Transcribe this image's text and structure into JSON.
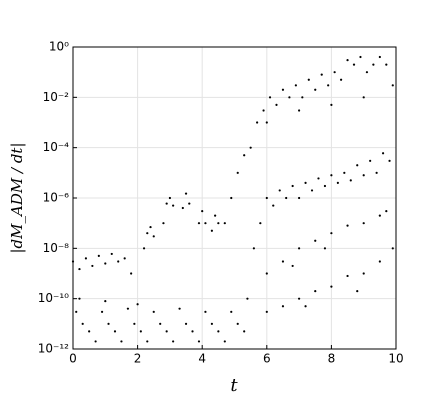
{
  "chart_data": {
    "type": "scatter",
    "x_label": "t",
    "y_label": "|dM_ADM / dt|",
    "xlim": [
      0,
      10
    ],
    "xticks": [
      0,
      2,
      4,
      6,
      8,
      10
    ],
    "ylim": [
      1e-12,
      1
    ],
    "log_y": true,
    "grid": true,
    "yticks": [
      {
        "value": 1e-12,
        "label": "10⁻¹²"
      },
      {
        "value": 1e-10,
        "label": "10⁻¹⁰"
      },
      {
        "value": 1e-08,
        "label": "10⁻⁸"
      },
      {
        "value": 1e-06,
        "label": "10⁻⁶"
      },
      {
        "value": 0.0001,
        "label": "10⁻⁴"
      },
      {
        "value": 0.01,
        "label": "10⁻²"
      },
      {
        "value": 1,
        "label": "10⁰"
      }
    ],
    "color": "#000000",
    "x": [
      0.1,
      0.3,
      0.5,
      0.7,
      0.9,
      1.1,
      1.3,
      1.5,
      1.7,
      1.9,
      2.1,
      2.3,
      2.5,
      2.7,
      2.9,
      3.1,
      3.3,
      3.5,
      3.7,
      3.9,
      4.1,
      4.3,
      4.5,
      4.7,
      4.9,
      5.1,
      5.3,
      0.2,
      1.0,
      2.0,
      0.0,
      0.2,
      0.4,
      0.6,
      0.8,
      1.0,
      1.2,
      1.4,
      1.6,
      1.8,
      2.2,
      2.3,
      2.4,
      2.5,
      2.8,
      2.9,
      3.0,
      3.1,
      3.4,
      3.5,
      3.6,
      3.9,
      4.0,
      4.1,
      4.3,
      4.4,
      4.5,
      4.7,
      4.9,
      5.1,
      5.3,
      5.5,
      5.7,
      5.9,
      6.1,
      6.3,
      6.5,
      6.7,
      6.9,
      7.1,
      7.3,
      7.5,
      7.7,
      7.9,
      8.1,
      8.3,
      8.5,
      8.7,
      8.9,
      9.1,
      9.3,
      9.5,
      9.7,
      9.9,
      6.0,
      7.0,
      8.0,
      9.0,
      5.4,
      5.6,
      5.8,
      6.0,
      6.2,
      6.4,
      6.6,
      6.8,
      7.0,
      7.2,
      7.4,
      7.6,
      7.8,
      8.0,
      8.2,
      8.4,
      8.6,
      8.8,
      9.0,
      9.2,
      9.4,
      9.6,
      9.8,
      6.0,
      6.5,
      7.0,
      7.5,
      8.0,
      8.5,
      9.0,
      9.5,
      9.7,
      6.8,
      7.8,
      6.0,
      6.5,
      7.0,
      7.5,
      8.0,
      8.5,
      9.0,
      9.5,
      9.9,
      7.2,
      8.8
    ],
    "values": [
      3e-11,
      1e-11,
      5e-12,
      2e-12,
      3e-11,
      1e-11,
      5e-12,
      2e-12,
      4e-11,
      1e-11,
      5e-12,
      2e-12,
      3e-11,
      1e-11,
      5e-12,
      2e-12,
      4e-11,
      1e-11,
      5e-12,
      2e-12,
      3e-11,
      1e-11,
      5e-12,
      2e-12,
      3e-11,
      1e-11,
      5e-12,
      1e-10,
      8e-11,
      6e-11,
      3e-09,
      1.5e-09,
      4e-09,
      2e-09,
      5e-09,
      2.5e-09,
      6e-09,
      3e-09,
      4e-09,
      1e-09,
      1e-08,
      4e-08,
      7e-08,
      3e-08,
      1e-07,
      6e-07,
      1e-06,
      5e-07,
      4e-07,
      1.5e-06,
      6e-07,
      1e-07,
      3e-07,
      1e-07,
      5e-08,
      2e-07,
      1e-07,
      1e-07,
      1e-06,
      1e-05,
      5e-05,
      0.0001,
      0.001,
      0.003,
      0.01,
      0.005,
      0.02,
      0.01,
      0.03,
      0.01,
      0.05,
      0.02,
      0.08,
      0.03,
      0.1,
      0.05,
      0.3,
      0.2,
      0.4,
      0.1,
      0.2,
      0.4,
      0.2,
      0.03,
      0.001,
      0.003,
      0.005,
      0.01,
      1e-10,
      1e-08,
      1e-07,
      1e-06,
      5e-07,
      2e-06,
      1e-06,
      3e-06,
      1e-06,
      4e-06,
      2e-06,
      6e-06,
      3e-06,
      8e-06,
      4e-06,
      1e-05,
      5e-06,
      2e-05,
      8e-06,
      3e-05,
      1e-05,
      6e-05,
      3e-05,
      1e-09,
      3e-09,
      1e-08,
      2e-08,
      4e-08,
      8e-08,
      1e-07,
      2e-07,
      3e-07,
      2e-09,
      1e-08,
      3e-11,
      5e-11,
      1e-10,
      2e-10,
      3e-10,
      8e-10,
      1e-09,
      3e-09,
      1e-08,
      5e-11,
      2e-10
    ]
  }
}
